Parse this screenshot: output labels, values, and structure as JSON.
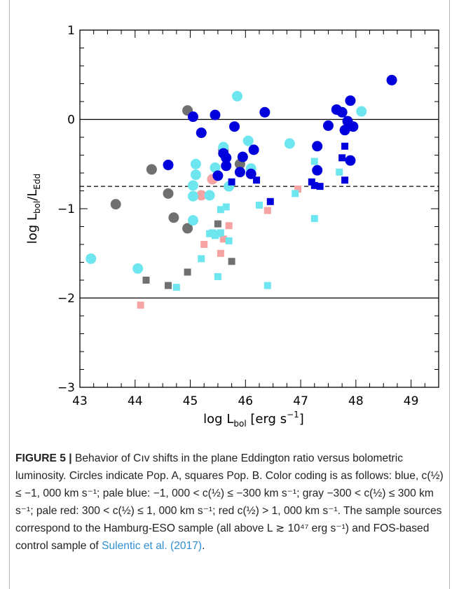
{
  "chart_data": {
    "type": "scatter",
    "xlabel_main": "log L",
    "xlabel_sub": "bol",
    "xlabel_unit": "[erg s",
    "xlabel_exp": "−1",
    "xlabel_close": "]",
    "ylabel_main": "log L",
    "ylabel_sub1": "bol",
    "ylabel_mid": "/L",
    "ylabel_sub2": "Edd",
    "xlim": [
      43,
      49.5
    ],
    "ylim": [
      -3,
      1
    ],
    "x_ticks": [
      43,
      44,
      45,
      46,
      47,
      48,
      49
    ],
    "x_tick_labels": [
      "43",
      "44",
      "45",
      "46",
      "47",
      "48",
      "49"
    ],
    "y_ticks": [
      -3,
      -2,
      -1,
      0,
      1
    ],
    "y_tick_labels": [
      "−3",
      "−2",
      "−1",
      "0",
      "1"
    ],
    "hlines_solid": [
      0,
      -2
    ],
    "hlines_dashed": [
      -0.75
    ],
    "colors": {
      "blue": "#0000dd",
      "pale_blue": "#6ee6f0",
      "gray": "#707070",
      "pale_red": "#f5a3a3"
    },
    "series": [
      {
        "key": "blue",
        "marker": "circle",
        "points": [
          [
            45.05,
            0.03
          ],
          [
            45.45,
            0.05
          ],
          [
            45.2,
            -0.15
          ],
          [
            44.6,
            -0.51
          ],
          [
            45.8,
            -0.08
          ],
          [
            46.35,
            0.08
          ],
          [
            45.6,
            -0.38
          ],
          [
            45.65,
            -0.43
          ],
          [
            45.95,
            -0.42
          ],
          [
            46.15,
            -0.34
          ],
          [
            45.9,
            -0.59
          ],
          [
            45.65,
            -0.52
          ],
          [
            45.5,
            -0.63
          ],
          [
            46.1,
            -0.61
          ],
          [
            47.3,
            -0.3
          ],
          [
            47.3,
            -0.57
          ],
          [
            47.5,
            -0.07
          ],
          [
            47.65,
            0.11
          ],
          [
            47.75,
            0.08
          ],
          [
            47.9,
            0.21
          ],
          [
            47.85,
            -0.02
          ],
          [
            47.95,
            -0.08
          ],
          [
            47.8,
            -0.12
          ],
          [
            47.9,
            -0.46
          ],
          [
            48.65,
            0.44
          ]
        ]
      },
      {
        "key": "blue",
        "marker": "square",
        "points": [
          [
            45.75,
            -0.7
          ],
          [
            46.2,
            -0.68
          ],
          [
            46.45,
            -0.92
          ],
          [
            47.2,
            -0.7
          ],
          [
            47.25,
            -0.74
          ],
          [
            47.35,
            -0.75
          ],
          [
            47.8,
            -0.3
          ],
          [
            47.75,
            -0.43
          ],
          [
            47.8,
            -0.68
          ]
        ]
      },
      {
        "key": "pale_blue",
        "marker": "circle",
        "points": [
          [
            45.85,
            0.26
          ],
          [
            43.2,
            -1.56
          ],
          [
            44.05,
            -1.67
          ],
          [
            45.1,
            -0.5
          ],
          [
            45.1,
            -0.62
          ],
          [
            45.05,
            -0.74
          ],
          [
            45.05,
            -0.86
          ],
          [
            45.05,
            -1.13
          ],
          [
            45.35,
            -0.85
          ],
          [
            45.45,
            -0.54
          ],
          [
            45.6,
            -0.31
          ],
          [
            45.7,
            -0.75
          ],
          [
            46.05,
            -0.24
          ],
          [
            46.1,
            -0.55
          ],
          [
            46.8,
            -0.27
          ],
          [
            48.1,
            0.09
          ]
        ]
      },
      {
        "key": "pale_blue",
        "marker": "square",
        "points": [
          [
            45.2,
            -1.56
          ],
          [
            45.35,
            -1.28
          ],
          [
            45.4,
            -1.27
          ],
          [
            45.45,
            -1.3
          ],
          [
            45.5,
            -1.28
          ],
          [
            45.55,
            -1.27
          ],
          [
            45.5,
            -1.76
          ],
          [
            45.55,
            -1.01
          ],
          [
            45.65,
            -0.98
          ],
          [
            45.7,
            -1.36
          ],
          [
            44.75,
            -1.88
          ],
          [
            46.25,
            -0.96
          ],
          [
            46.4,
            -1.86
          ],
          [
            46.9,
            -0.83
          ],
          [
            47.25,
            -0.47
          ],
          [
            47.25,
            -1.11
          ],
          [
            47.7,
            -0.59
          ]
        ]
      },
      {
        "key": "gray",
        "marker": "circle",
        "points": [
          [
            43.65,
            -0.95
          ],
          [
            44.3,
            -0.56
          ],
          [
            44.6,
            -0.83
          ],
          [
            44.7,
            -1.1
          ],
          [
            44.95,
            -1.22
          ],
          [
            44.95,
            0.1
          ],
          [
            45.6,
            -0.34
          ],
          [
            45.9,
            -0.5
          ]
        ]
      },
      {
        "key": "gray",
        "marker": "square",
        "points": [
          [
            44.2,
            -1.8
          ],
          [
            44.6,
            -1.86
          ],
          [
            44.95,
            -1.71
          ],
          [
            45.5,
            -1.17
          ],
          [
            45.75,
            -1.59
          ]
        ]
      },
      {
        "key": "pale_red",
        "marker": "circle",
        "points": [
          [
            45.2,
            -0.85
          ],
          [
            45.4,
            -0.67
          ]
        ]
      },
      {
        "key": "pale_red",
        "marker": "square",
        "points": [
          [
            44.1,
            -2.08
          ],
          [
            45.25,
            -1.4
          ],
          [
            45.55,
            -1.5
          ],
          [
            45.6,
            -1.34
          ],
          [
            45.7,
            -1.19
          ],
          [
            46.4,
            -1.02
          ],
          [
            46.95,
            -0.78
          ]
        ]
      }
    ]
  },
  "caption": {
    "figure_label": "FIGURE 5 | ",
    "text": "Behavior of Cıv shifts in the plane Eddington ratio versus bolometric luminosity. Circles indicate Pop. A, squares Pop. B. Color coding is as follows: blue, c(½) ≤ −1, 000 km s⁻¹; pale blue: −1, 000 < c(½) ≤ −300 km s⁻¹; gray −300 < c(½) ≤ 300 km s⁻¹; pale red: 300 < c(½) ≤ 1, 000 km s⁻¹; red c(½) > 1, 000 km s⁻¹. The sample sources correspond to the Hamburg-ESO sample (all above L ≳ 10⁴⁷ erg s⁻¹) and FOS-based control sample of ",
    "link_text": "Sulentic et al. (2017)",
    "end": "."
  }
}
